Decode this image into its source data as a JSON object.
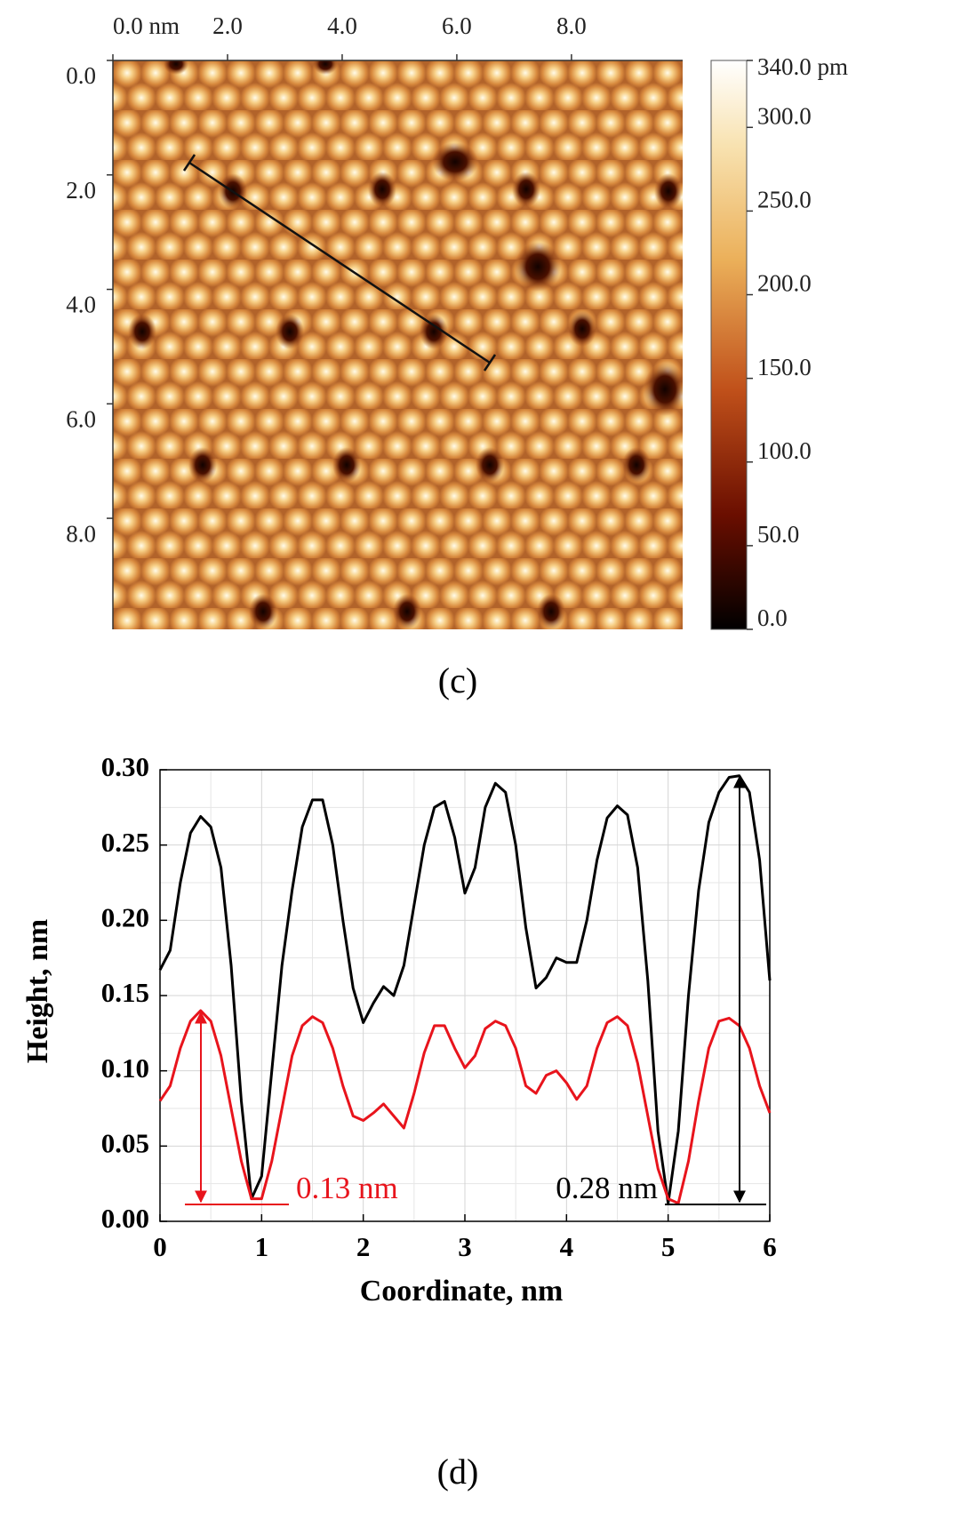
{
  "chart_data": [
    {
      "type": "image",
      "panel_label": "(c)",
      "xlim": [
        0,
        9.94
      ],
      "ylim": [
        0,
        9.94
      ],
      "xticks": [
        {
          "value": 0,
          "label": "0.0 nm"
        },
        {
          "value": 2,
          "label": "2.0"
        },
        {
          "value": 4,
          "label": "4.0"
        },
        {
          "value": 6,
          "label": "6.0"
        },
        {
          "value": 8,
          "label": "8.0"
        }
      ],
      "yticks": [
        {
          "value": 0,
          "label": "0.0"
        },
        {
          "value": 2,
          "label": "2.0"
        },
        {
          "value": 4,
          "label": "4.0"
        },
        {
          "value": 6,
          "label": "6.0"
        },
        {
          "value": 8,
          "label": "8.0"
        }
      ],
      "clim": [
        0,
        340
      ],
      "cticks": [
        {
          "value": 340,
          "label": "340.0 pm"
        },
        {
          "value": 300,
          "label": "300.0"
        },
        {
          "value": 250,
          "label": "250.0"
        },
        {
          "value": 200,
          "label": "200.0"
        },
        {
          "value": 150,
          "label": "150.0"
        },
        {
          "value": 100,
          "label": "100.0"
        },
        {
          "value": 50,
          "label": "50.0"
        },
        {
          "value": 0,
          "label": "0.0"
        }
      ]
    },
    {
      "type": "line",
      "panel_label": "(d)",
      "x_label": "Coordinate, nm",
      "y_label": "Height, nm",
      "xlim": [
        0,
        6
      ],
      "ylim": [
        0,
        0.3
      ],
      "xticks": [
        0,
        1,
        2,
        3,
        4,
        5,
        6
      ],
      "yticks": [
        {
          "value": 0,
          "label": "0.00"
        },
        {
          "value": 0.05,
          "label": "0.05"
        },
        {
          "value": 0.1,
          "label": "0.10"
        },
        {
          "value": 0.15,
          "label": "0.15"
        },
        {
          "value": 0.2,
          "label": "0.20"
        },
        {
          "value": 0.25,
          "label": "0.25"
        },
        {
          "value": 0.3,
          "label": "0.30"
        }
      ],
      "grid": true,
      "x": [
        0,
        0.1,
        0.2,
        0.3,
        0.4,
        0.5,
        0.6,
        0.7,
        0.8,
        0.9,
        1,
        1.1,
        1.2,
        1.3,
        1.4,
        1.5,
        1.6,
        1.7,
        1.8,
        1.9,
        2,
        2.1,
        2.2,
        2.3,
        2.4,
        2.5,
        2.6,
        2.7,
        2.8,
        2.9,
        3,
        3.1,
        3.2,
        3.3,
        3.4,
        3.5,
        3.6,
        3.7,
        3.8,
        3.9,
        4,
        4.1,
        4.2,
        4.3,
        4.4,
        4.5,
        4.6,
        4.7,
        4.8,
        4.9,
        5,
        5.1,
        5.2,
        5.3,
        5.4,
        5.5,
        5.6,
        5.7,
        5.8,
        5.9,
        6
      ],
      "series": [
        {
          "color": "#000000",
          "values": [
            0.167,
            0.18,
            0.225,
            0.258,
            0.269,
            0.262,
            0.235,
            0.17,
            0.08,
            0.015,
            0.03,
            0.1,
            0.17,
            0.22,
            0.262,
            0.28,
            0.28,
            0.25,
            0.2,
            0.155,
            0.132,
            0.145,
            0.156,
            0.15,
            0.17,
            0.21,
            0.25,
            0.275,
            0.279,
            0.255,
            0.218,
            0.235,
            0.275,
            0.291,
            0.285,
            0.25,
            0.195,
            0.155,
            0.162,
            0.175,
            0.172,
            0.172,
            0.2,
            0.24,
            0.268,
            0.276,
            0.27,
            0.235,
            0.16,
            0.06,
            0.012,
            0.06,
            0.15,
            0.22,
            0.265,
            0.285,
            0.295,
            0.296,
            0.285,
            0.24,
            0.16
          ]
        },
        {
          "color": "#e8141c",
          "values": [
            0.08,
            0.09,
            0.115,
            0.133,
            0.14,
            0.133,
            0.11,
            0.075,
            0.04,
            0.015,
            0.015,
            0.04,
            0.075,
            0.11,
            0.13,
            0.136,
            0.132,
            0.115,
            0.09,
            0.07,
            0.067,
            0.072,
            0.078,
            0.07,
            0.062,
            0.085,
            0.112,
            0.13,
            0.13,
            0.115,
            0.102,
            0.11,
            0.128,
            0.133,
            0.13,
            0.115,
            0.09,
            0.085,
            0.097,
            0.1,
            0.092,
            0.081,
            0.09,
            0.115,
            0.132,
            0.136,
            0.13,
            0.105,
            0.07,
            0.035,
            0.015,
            0.012,
            0.04,
            0.08,
            0.115,
            0.133,
            0.135,
            0.13,
            0.115,
            0.09,
            0.072
          ]
        }
      ],
      "annotations": [
        "0.13 nm",
        "0.28 nm"
      ]
    }
  ]
}
